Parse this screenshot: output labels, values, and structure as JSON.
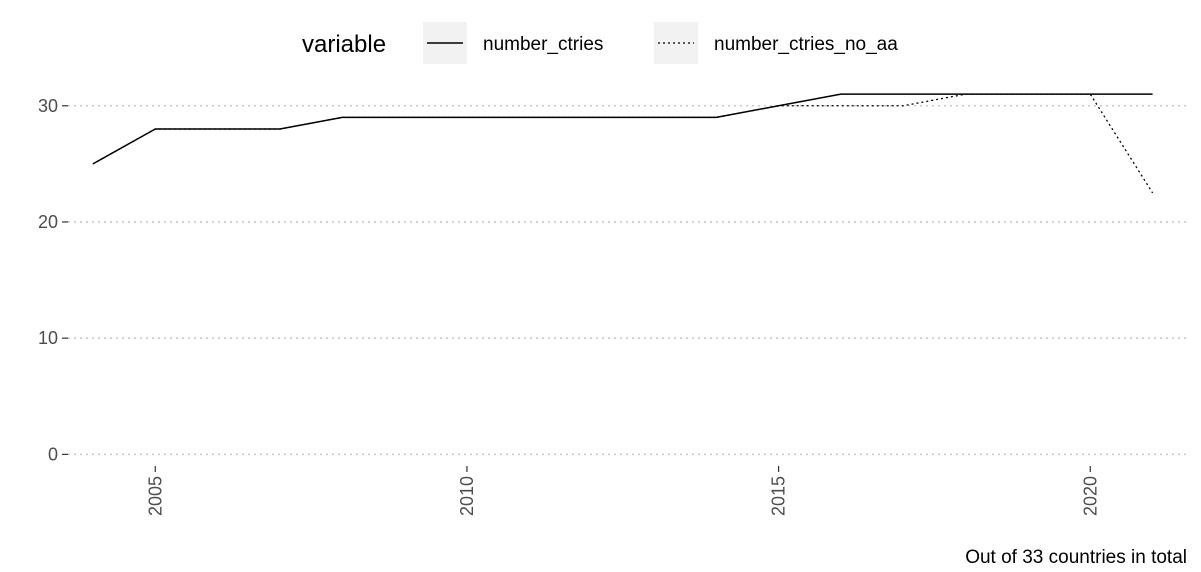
{
  "chart_data": {
    "type": "line",
    "x": [
      2004,
      2005,
      2006,
      2007,
      2008,
      2009,
      2010,
      2011,
      2012,
      2013,
      2014,
      2015,
      2016,
      2017,
      2018,
      2019,
      2020,
      2021
    ],
    "series": [
      {
        "name": "number_ctries",
        "linetype": "solid",
        "values": [
          25,
          28,
          28,
          28,
          29,
          29,
          29,
          29,
          29,
          29,
          29,
          30,
          31,
          31,
          31,
          31,
          31,
          31
        ]
      },
      {
        "name": "number_ctries_no_aa",
        "linetype": "dotted",
        "values": [
          25,
          28,
          28,
          28,
          29,
          29,
          29,
          29,
          29,
          29,
          29,
          30,
          30,
          30,
          31,
          31,
          31,
          22.5
        ]
      }
    ],
    "legend_title": "variable",
    "legend_position": "top",
    "caption": "Out of 33 countries in total",
    "xlim": [
      2003.6,
      2021.6
    ],
    "ylim": [
      -1,
      31.7
    ],
    "x_ticks": [
      2005,
      2010,
      2015,
      2020
    ],
    "y_ticks": [
      0,
      10,
      20,
      30
    ],
    "x_tick_labels": [
      "2005",
      "2010",
      "2015",
      "2020"
    ],
    "y_tick_labels": [
      "0",
      "10",
      "20",
      "30"
    ],
    "grid": "horizontal-major-dotted",
    "colors": {
      "line": "#000000",
      "grid": "#c8c8c8",
      "tick_label": "#4d4d4d",
      "legend_key_bg": "#f2f2f2"
    }
  }
}
